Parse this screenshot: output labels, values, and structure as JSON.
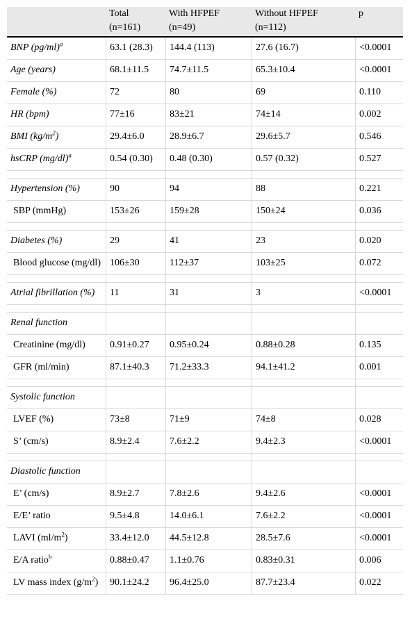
{
  "header": {
    "col_total": "Total",
    "col_total_n": "(n=161)",
    "col_with": "With HFPEF",
    "col_with_n": "(n=49)",
    "col_without": "Without HFPEF",
    "col_without_n": "(n=112)",
    "col_p": "p"
  },
  "rows": {
    "bnp": {
      "label": "BNP (pg/ml)",
      "sup": "a",
      "total": "63.1 (28.3)",
      "with": "144.4 (113)",
      "without": "27.6 (16.7)",
      "p": "<0.0001"
    },
    "age": {
      "label": "Age (years)",
      "total": "68.1±11.5",
      "with": "74.7±11.5",
      "without": "65.3±10.4",
      "p": "<0.0001"
    },
    "female": {
      "label": "Female (%)",
      "total": "72",
      "with": "80",
      "without": "69",
      "p": "0.110"
    },
    "hr": {
      "label": "HR (bpm)",
      "total": "77±16",
      "with": "83±21",
      "without": "74±14",
      "p": "0.002"
    },
    "bmi": {
      "label": "BMI (kg/m",
      "sup": "2",
      "label_end": ")",
      "total": "29.4±6.0",
      "with": "28.9±6.7",
      "without": "29.6±5.7",
      "p": "0.546"
    },
    "hscrp": {
      "label": "hsCRP (mg/dl)",
      "sup": "a",
      "total": "0.54 (0.30)",
      "with": "0.48 (0.30)",
      "without": "0.57 (0.32)",
      "p": "0.527"
    },
    "hypertension": {
      "label": "Hypertension (%)",
      "total": "90",
      "with": "94",
      "without": "88",
      "p": "0.221"
    },
    "sbp": {
      "label": "SBP (mmHg)",
      "total": "153±26",
      "with": "159±28",
      "without": "150±24",
      "p": "0.036"
    },
    "diabetes": {
      "label": "Diabetes (%)",
      "total": "29",
      "with": "41",
      "without": "23",
      "p": "0.020"
    },
    "glucose": {
      "label": "Blood glucose (mg/dl)",
      "total": "106±30",
      "with": "112±37",
      "without": "103±25",
      "p": "0.072"
    },
    "af": {
      "label": "Atrial fibrillation (%)",
      "total": "11",
      "with": "31",
      "without": "3",
      "p": "<0.0001"
    },
    "renal": {
      "label": "Renal function"
    },
    "creatinine": {
      "label": "Creatinine (mg/dl)",
      "total": "0.91±0.27",
      "with": "0.95±0.24",
      "without": "0.88±0.28",
      "p": "0.135"
    },
    "gfr": {
      "label": "GFR (ml/min)",
      "total": "87.1±40.3",
      "with": "71.2±33.3",
      "without": "94.1±41.2",
      "p": "0.001"
    },
    "systolic": {
      "label": "Systolic function"
    },
    "lvef": {
      "label": "LVEF (%)",
      "total": "73±8",
      "with": "71±9",
      "without": "74±8",
      "p": "0.028"
    },
    "s_prime": {
      "label": "S’ (cm/s)",
      "total": "8.9±2.4",
      "with": "7.6±2.2",
      "without": "9.4±2.3",
      "p": "<0.0001"
    },
    "diastolic": {
      "label": "Diastolic function"
    },
    "e_prime": {
      "label": "E’ (cm/s)",
      "total": "8.9±2.7",
      "with": "7.8±2.6",
      "without": "9.4±2.6",
      "p": "<0.0001"
    },
    "ee_ratio": {
      "label": "E/E’ ratio",
      "total": "9.5±4.8",
      "with": "14.0±6.1",
      "without": "7.6±2.2",
      "p": "<0.0001"
    },
    "lavi": {
      "label": "LAVI (ml/m",
      "sup": "2",
      "label_end": ")",
      "total": "33.4±12.0",
      "with": "44.5±12.8",
      "without": "28.5±7.6",
      "p": "<0.0001"
    },
    "ea_ratio": {
      "label": "E/A ratio",
      "sup": "b",
      "total": "0.88±0.47",
      "with": "1.1±0.76",
      "without": "0.83±0.31",
      "p": "0.006"
    },
    "lvmi": {
      "label": "LV mass index (g/m",
      "sup": "2",
      "label_end": ")",
      "total": "90.1±24.2",
      "with": "96.4±25.0",
      "without": "87.7±23.4",
      "p": "0.022"
    }
  }
}
